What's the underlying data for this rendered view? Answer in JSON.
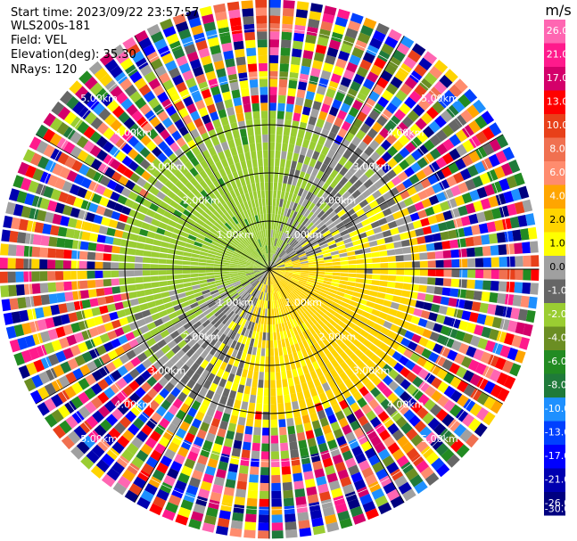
{
  "header": {
    "start_time": "Start time: 2023/09/22 23:57:57",
    "site": "WLS200s-181",
    "field": "Field: VEL",
    "elevation": "Elevation(deg): 35.30",
    "nrays": "NRays: 120"
  },
  "chart_data": {
    "type": "heatmap",
    "projection": "polar-ppi",
    "title": "",
    "field": "VEL",
    "units": "m/s",
    "n_rays": 120,
    "elevation_deg": 35.3,
    "range_rings_km": [
      "1.00km",
      "2.00km",
      "3.00km",
      "4.00km",
      "5.00km"
    ],
    "ring_radii_km": [
      1,
      2,
      3,
      4,
      5
    ],
    "max_range_km": 5.6,
    "colorbar": {
      "ticks": [
        "26.0",
        "21.0",
        "17.0",
        "13.0",
        "10.0",
        "8.0",
        "6.0",
        "4.0",
        "2.0",
        "1.0",
        "0.0",
        "-1.0",
        "-2.0",
        "-4.0",
        "-6.0",
        "-8.0",
        "-10.0",
        "-13.0",
        "-17.0",
        "-21.0",
        "-26.0",
        "-30.0"
      ],
      "colors": [
        "#ff66b2",
        "#ff1a8c",
        "#d4006a",
        "#ff0000",
        "#e8401a",
        "#f07050",
        "#ff8c6e",
        "#ffa500",
        "#ffd400",
        "#ffff00",
        "#a0a0a0",
        "#666666",
        "#9acd32",
        "#6b8e23",
        "#228b22",
        "#1f7a3a",
        "#1e90ff",
        "#0040ff",
        "#0000ff",
        "#0000b0",
        "#000080"
      ]
    },
    "pattern": {
      "clear_air_radius_km": 3.2,
      "negative_sector_note": "northwest half -1 to -4 m/s (greens), southeast half +1 to +2 m/s (yellows), grey near-zero band along boundary",
      "noise_beyond_km": 3.2
    }
  },
  "colors": {
    "axis": "#000000",
    "ring_label": "#ffffff"
  }
}
